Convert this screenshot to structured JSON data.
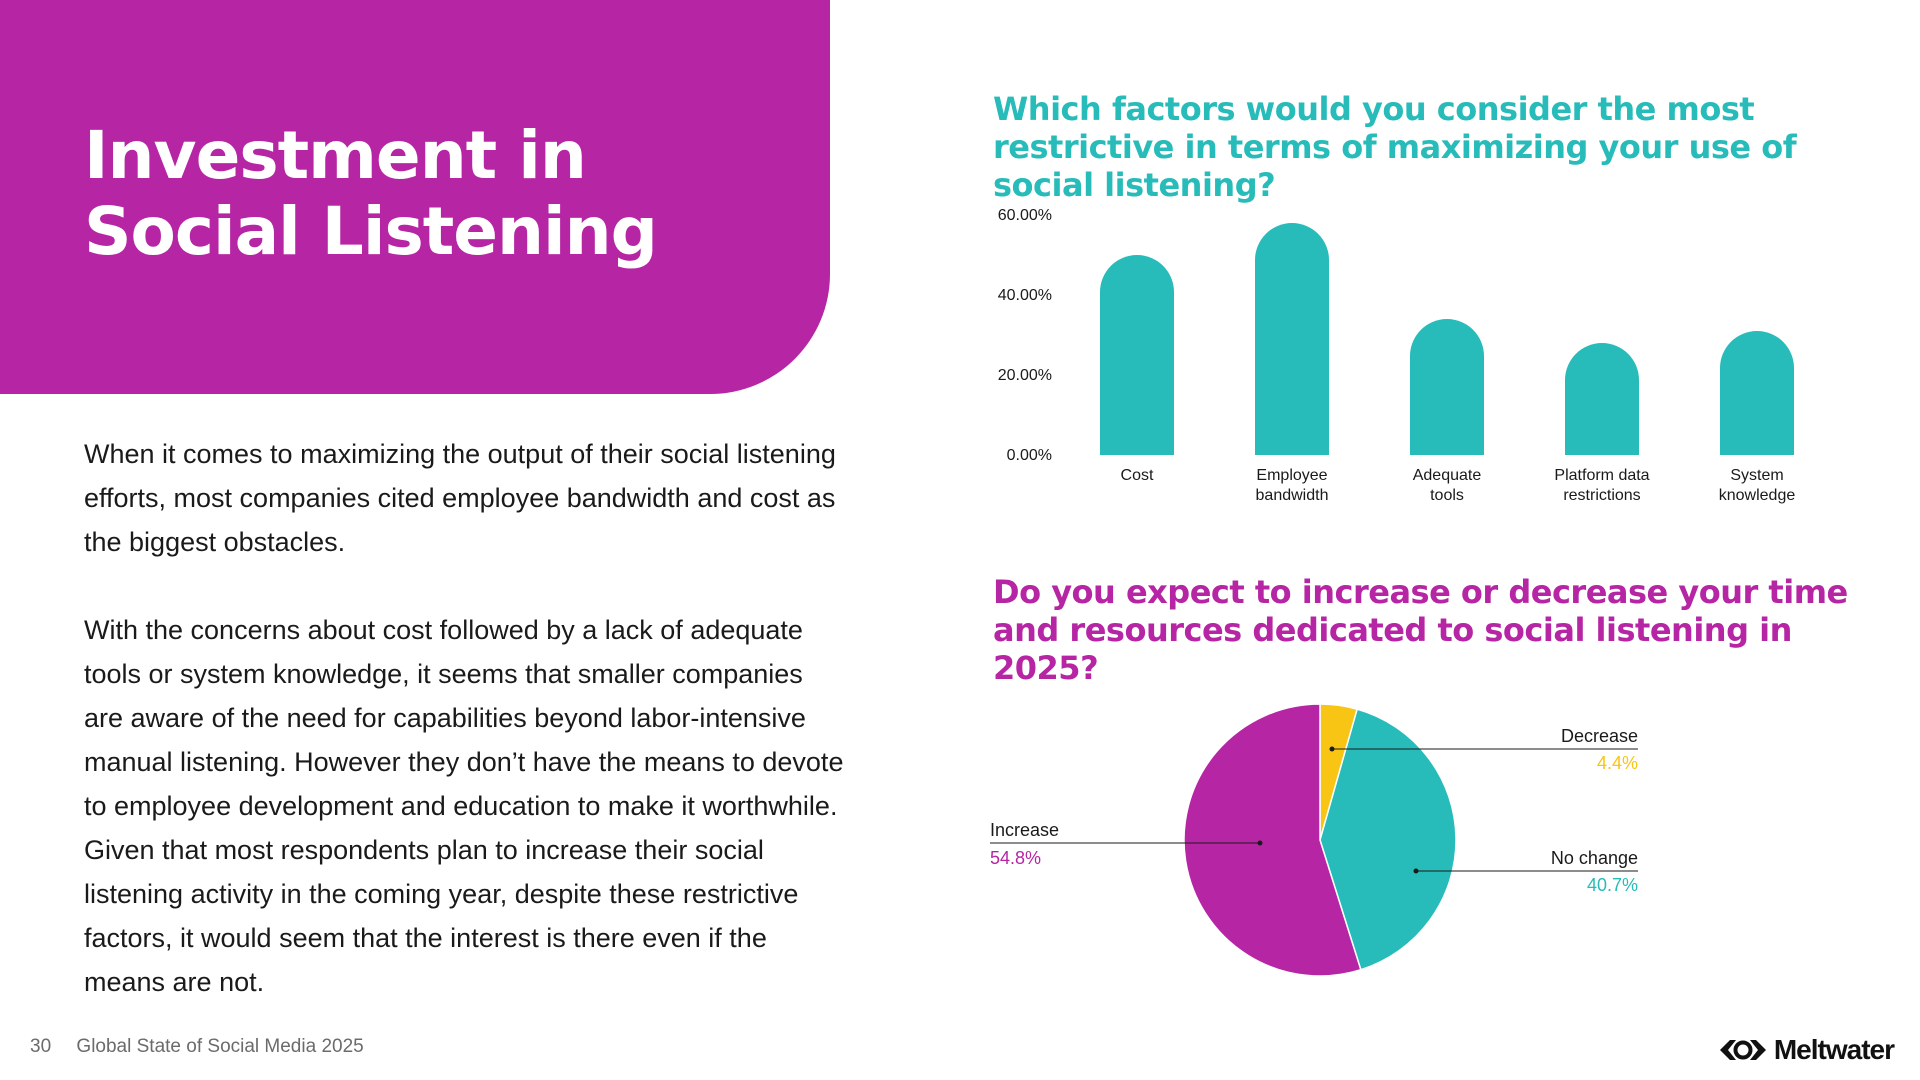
{
  "slide": {
    "title_lines": [
      "Investment in",
      "Social Listening"
    ],
    "paragraphs": [
      "When it comes to maximizing the output of their social listening efforts, most companies cited employee bandwidth and cost as the biggest obstacles.",
      "With the concerns about cost followed by a lack of adequate tools or system knowledge, it seems that smaller companies are aware of the need for capabilities beyond labor-intensive manual listening. However they don’t have the means to devote to employee development and education to make it worthwhile. Given that most respondents plan to increase their social listening activity in the coming year, despite these restrictive factors, it would seem that the interest is there even if the means are not."
    ]
  },
  "footer": {
    "page_number": "30",
    "report_title": "Global State of Social Media 2025"
  },
  "logo": {
    "text": "Meltwater",
    "icon": "meltwater-logo-icon"
  },
  "colors": {
    "magenta": "#b625a4",
    "teal": "#27bcb9",
    "yellow": "#f9c514"
  },
  "chart_data": [
    {
      "type": "bar",
      "title": "Which factors would you consider the most restrictive in terms of maximizing your use of social listening?",
      "categories": [
        "Cost",
        "Employee bandwidth",
        "Adequate tools",
        "Platform data restrictions",
        "System knowledge"
      ],
      "category_lines": [
        [
          "Cost"
        ],
        [
          "Employee",
          "bandwidth"
        ],
        [
          "Adequate",
          "tools"
        ],
        [
          "Platform data",
          "restrictions"
        ],
        [
          "System",
          "knowledge"
        ]
      ],
      "values": [
        50,
        58,
        34,
        28,
        31
      ],
      "unit": "%",
      "ylim": [
        0,
        60
      ],
      "yticks": [
        0,
        20,
        40,
        60
      ],
      "ytick_labels": [
        "0.00%",
        "20.00%",
        "40.00%",
        "60.00%"
      ],
      "grid": false,
      "legend": "none",
      "color": "#27bcb9"
    },
    {
      "type": "pie",
      "title": "Do you expect to increase or decrease your time and resources dedicated to social listening in 2025?",
      "slices": [
        {
          "label": "Decrease",
          "value": 4.4,
          "value_label": "4.4%",
          "color": "#f9c514"
        },
        {
          "label": "No change",
          "value": 40.7,
          "value_label": "40.7%",
          "color": "#27bcb9"
        },
        {
          "label": "Increase",
          "value": 54.8,
          "value_label": "54.8%",
          "color": "#b625a4"
        }
      ],
      "legend": "callout labels"
    }
  ]
}
